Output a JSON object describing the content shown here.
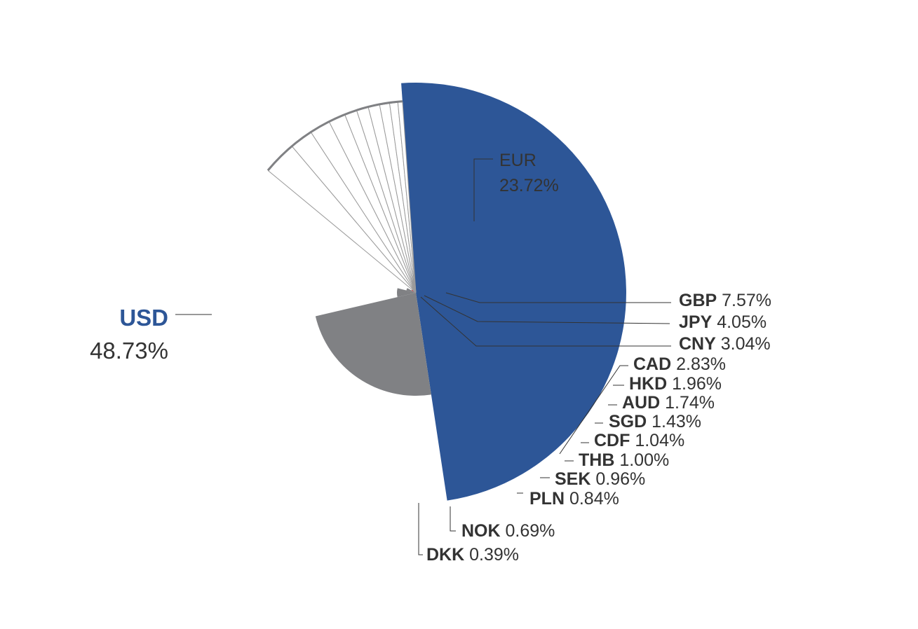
{
  "chart_data": {
    "type": "pie",
    "title": "",
    "slices": [
      {
        "label": "USD",
        "value": 48.73,
        "display": "48.73%",
        "color": "#2d5697"
      },
      {
        "label": "EUR",
        "value": 23.72,
        "display": "23.72%",
        "color": "#808184"
      },
      {
        "label": "GBP",
        "value": 7.57,
        "display": "7.57%",
        "color": "#808184"
      },
      {
        "label": "JPY",
        "value": 4.05,
        "display": "4.05%",
        "color": "#808184"
      },
      {
        "label": "CNY",
        "value": 3.04,
        "display": "3.04%",
        "color": "#e31d2b"
      },
      {
        "label": "CAD",
        "value": 2.83,
        "display": "2.83%",
        "color": "#808184"
      },
      {
        "label": "HKD",
        "value": 1.96,
        "display": "1.96%",
        "color": "#808184"
      },
      {
        "label": "AUD",
        "value": 1.74,
        "display": "1.74%",
        "color": "#808184"
      },
      {
        "label": "SGD",
        "value": 1.43,
        "display": "1.43%",
        "color": "#808184"
      },
      {
        "label": "CDF",
        "value": 1.04,
        "display": "1.04%",
        "color": "#808184"
      },
      {
        "label": "THB",
        "value": 1.0,
        "display": "1.00%",
        "color": "#808184"
      },
      {
        "label": "SEK",
        "value": 0.96,
        "display": "0.96%",
        "color": "#808184"
      },
      {
        "label": "PLN",
        "value": 0.84,
        "display": "0.84%",
        "color": "#808184"
      },
      {
        "label": "NOK",
        "value": 0.69,
        "display": "0.69%",
        "color": "#808184"
      },
      {
        "label": "DKK",
        "value": 0.39,
        "display": "0.39%",
        "color": "#808184"
      }
    ],
    "colors": {
      "usd": "#2d5697",
      "other": "#808184",
      "highlight": "#e31d2b",
      "text": "#333333",
      "leader": "#333333"
    }
  }
}
